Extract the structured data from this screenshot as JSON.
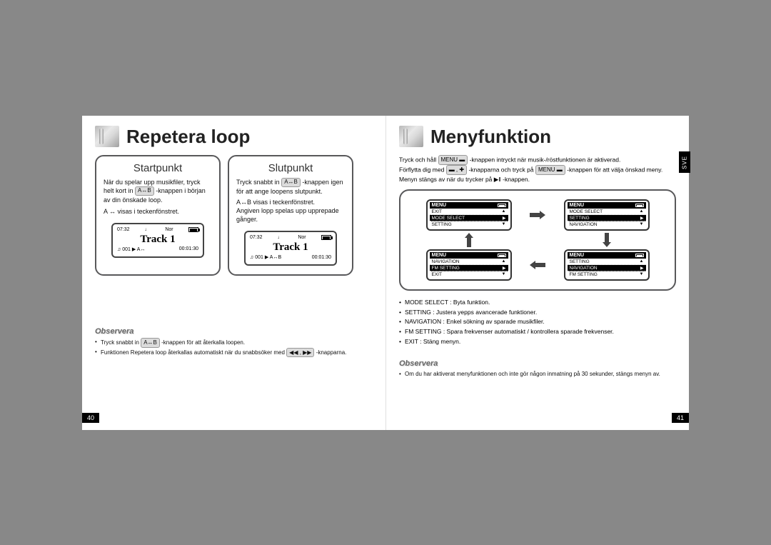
{
  "left": {
    "title": "Repetera loop",
    "boxes": {
      "start": {
        "title": "Startpunkt",
        "para1": "När du spelar upp musikfiler, tryck helt kort in",
        "button": "A↔B",
        "para2": "-knappen i början av din önskade loop.",
        "note": "A ↔ visas i teckenfönstret.",
        "lcd": {
          "time": "07:32",
          "icon": "♩",
          "mode": "Nor",
          "track": "Track 1",
          "num": "001",
          "status": "A↔",
          "elapsed": "00:01:30"
        }
      },
      "end": {
        "title": "Slutpunkt",
        "para1": "Tryck snabbt in",
        "button": "A↔B",
        "para2": "-knappen igen för att ange loopens slutpunkt.",
        "note1": "A↔B visas i teckenfönstret.",
        "note2": "Angiven lopp spelas upp upprepade gånger.",
        "lcd": {
          "time": "07:32",
          "icon": "♩",
          "mode": "Nor",
          "track": "Track 1",
          "num": "001",
          "status": "A↔B",
          "elapsed": "00:01:30"
        }
      }
    },
    "observ": {
      "title": "Observera",
      "b1a": "Tryck snabbt in",
      "b1btn": "A↔B",
      "b1b": "-knappen för att återkalla loopen.",
      "b2a": "Funktionen Repetera loop återkallas automatiskt när du snabbsöker med",
      "b2btn": "◀◀ , ▶▶",
      "b2b": "-knapparna."
    },
    "pagenum": "40"
  },
  "right": {
    "title": "Menyfunktion",
    "sve": "SVE",
    "instr": {
      "l1a": "Tryck och håll",
      "menubtn": "MENU ▬",
      "l1b": "-knappen intryckt när musik-/röstfunktionen är aktiverad.",
      "l2a": "Förflytta dig med",
      "navbtn": "▬ , ✚",
      "l2b": "-knapparna och tryck på",
      "l2c": "-knappen för att välja önskad meny.",
      "l3": "Menyn stängs av när du trycker på ▶‖ -knappen."
    },
    "menus": {
      "tl": {
        "header": "MENU",
        "rows": [
          "EXIT",
          "MODE SELECT",
          "SETTING"
        ],
        "hl": 1
      },
      "tr": {
        "header": "MENU",
        "rows": [
          "MODE SELECT",
          "SETTING",
          "NAVIGATION"
        ],
        "hl": 1
      },
      "bl": {
        "header": "MENU",
        "rows": [
          "NAVIGATION",
          "FM SETTING",
          "EXIT"
        ],
        "hl": 1
      },
      "br": {
        "header": "MENU",
        "rows": [
          "SETTING",
          "NAVIGATION",
          "FM SETTING"
        ],
        "hl": 1
      }
    },
    "bullets": {
      "b1": "MODE SELECT : Byta funktion.",
      "b2": "SETTING : Justera yepps avancerade funktioner.",
      "b3": "NAVIGATION : Enkel sökning av sparade musikfiler.",
      "b4": "FM SETTING : Spara frekvenser automatiskt / kontrollera sparade frekvenser.",
      "b5": "EXIT : Stäng menyn."
    },
    "observ": {
      "title": "Observera",
      "b1": "Om du har aktiverat menyfunktionen och inte gör någon inmatning på 30 sekunder, stängs menyn av."
    },
    "pagenum": "41"
  }
}
